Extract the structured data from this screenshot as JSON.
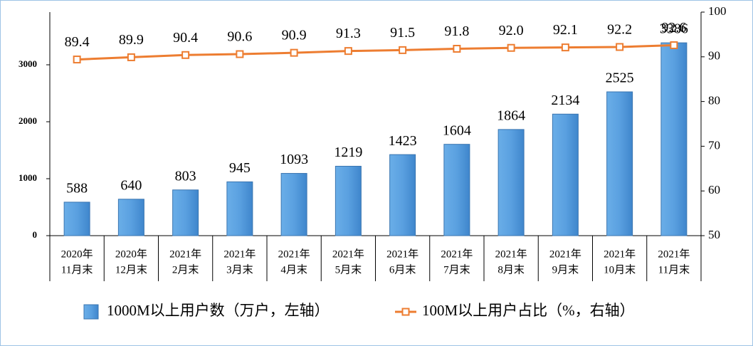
{
  "chart_data": {
    "type": "bar",
    "categories": [
      [
        "2020年",
        "11月末"
      ],
      [
        "2020年",
        "12月末"
      ],
      [
        "2021年",
        "2月末"
      ],
      [
        "2021年",
        "3月末"
      ],
      [
        "2021年",
        "4月末"
      ],
      [
        "2021年",
        "5月末"
      ],
      [
        "2021年",
        "6月末"
      ],
      [
        "2021年",
        "7月末"
      ],
      [
        "2021年",
        "8月末"
      ],
      [
        "2021年",
        "9月末"
      ],
      [
        "2021年",
        "10月末"
      ],
      [
        "2021年",
        "11月末"
      ]
    ],
    "series": [
      {
        "name": "1000M以上用户数（万户，左轴）",
        "type": "bar",
        "axis": "y",
        "color": "#5b9bd5",
        "values": [
          588,
          640,
          803,
          945,
          1093,
          1219,
          1423,
          1604,
          1864,
          2134,
          2525,
          3386
        ]
      },
      {
        "name": "100M以上用户占比（%，右轴）",
        "type": "line",
        "axis": "y2",
        "color": "#ed7d31",
        "values": [
          89.4,
          89.9,
          90.4,
          90.6,
          90.9,
          91.3,
          91.5,
          91.8,
          92.0,
          92.1,
          92.2,
          92.6
        ],
        "value_labels": [
          "89.4",
          "89.9",
          "90.4",
          "90.6",
          "90.9",
          "91.3",
          "91.5",
          "91.8",
          "92.0",
          "92.1",
          "92.2",
          "92.6"
        ]
      }
    ],
    "ylim": [
      0,
      3925
    ],
    "yticks": [
      0,
      1000,
      2000,
      3000
    ],
    "y2lim": [
      50,
      100
    ],
    "y2ticks": [
      50,
      60,
      70,
      80,
      90,
      100
    ],
    "legend": "bottom"
  }
}
